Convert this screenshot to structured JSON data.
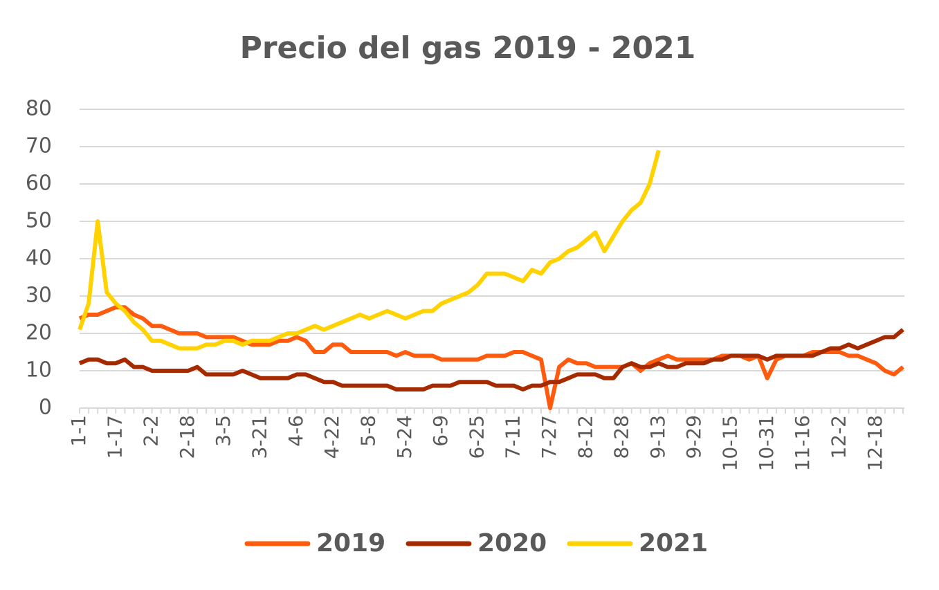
{
  "chart_data": {
    "type": "line",
    "title": "Precio del gas 2019 - 2021",
    "categories": [
      "1-1",
      null,
      null,
      null,
      "1-17",
      null,
      null,
      null,
      "2-2",
      null,
      null,
      null,
      "2-18",
      null,
      null,
      null,
      "3-5",
      null,
      null,
      null,
      "3-21",
      null,
      null,
      null,
      "4-6",
      null,
      null,
      null,
      "4-22",
      null,
      null,
      null,
      "5-8",
      null,
      null,
      null,
      "5-24",
      null,
      null,
      null,
      "6-9",
      null,
      null,
      null,
      "6-25",
      null,
      null,
      null,
      "7-11",
      null,
      null,
      null,
      "7-27",
      null,
      null,
      null,
      "8-12",
      null,
      null,
      null,
      "8-28",
      null,
      null,
      null,
      "9-13",
      null,
      null,
      null,
      "9-29",
      null,
      null,
      null,
      "10-15",
      null,
      null,
      null,
      "10-31",
      null,
      null,
      null,
      "11-16",
      null,
      null,
      null,
      "12-2",
      null,
      null,
      null,
      "12-18",
      null,
      null,
      null
    ],
    "series": [
      {
        "name": "2019",
        "color": "#ff5b0f",
        "values": [
          24,
          25,
          25,
          26,
          27,
          27,
          25,
          24,
          22,
          22,
          21,
          20,
          20,
          20,
          19,
          19,
          19,
          19,
          18,
          17,
          17,
          17,
          18,
          18,
          19,
          18,
          15,
          15,
          17,
          17,
          15,
          15,
          15,
          15,
          15,
          14,
          15,
          14,
          14,
          14,
          13,
          13,
          13,
          13,
          13,
          14,
          14,
          14,
          15,
          15,
          14,
          13,
          0,
          11,
          13,
          12,
          12,
          11,
          11,
          11,
          11,
          12,
          10,
          12,
          13,
          14,
          13,
          13,
          13,
          13,
          13,
          14,
          14,
          14,
          13,
          14,
          8,
          13,
          14,
          14,
          14,
          15,
          15,
          15,
          15,
          14,
          14,
          13,
          12,
          10,
          9,
          11
        ]
      },
      {
        "name": "2020",
        "color": "#a52a00",
        "values": [
          12,
          13,
          13,
          12,
          12,
          13,
          11,
          11,
          10,
          10,
          10,
          10,
          10,
          11,
          9,
          9,
          9,
          9,
          10,
          9,
          8,
          8,
          8,
          8,
          9,
          9,
          8,
          7,
          7,
          6,
          6,
          6,
          6,
          6,
          6,
          5,
          5,
          5,
          5,
          6,
          6,
          6,
          7,
          7,
          7,
          7,
          6,
          6,
          6,
          5,
          6,
          6,
          7,
          7,
          8,
          9,
          9,
          9,
          8,
          8,
          11,
          12,
          11,
          11,
          12,
          11,
          11,
          12,
          12,
          12,
          13,
          13,
          14,
          14,
          14,
          14,
          13,
          14,
          14,
          14,
          14,
          14,
          15,
          16,
          16,
          17,
          16,
          17,
          18,
          19,
          19,
          21
        ]
      },
      {
        "name": "2021",
        "color": "#ffd200",
        "values": [
          21,
          28,
          50,
          31,
          28,
          26,
          23,
          21,
          18,
          18,
          17,
          16,
          16,
          16,
          17,
          17,
          18,
          18,
          17,
          18,
          18,
          18,
          19,
          20,
          20,
          21,
          22,
          21,
          22,
          23,
          24,
          25,
          24,
          25,
          26,
          25,
          24,
          25,
          26,
          26,
          28,
          29,
          30,
          31,
          33,
          36,
          36,
          36,
          35,
          34,
          37,
          36,
          39,
          40,
          42,
          43,
          45,
          47,
          42,
          46,
          50,
          53,
          55,
          60,
          69,
          null,
          null,
          null,
          null,
          null,
          null,
          null,
          null,
          null,
          null,
          null,
          null,
          null,
          null,
          null,
          null,
          null,
          null,
          null,
          null,
          null,
          null,
          null,
          null,
          null,
          null,
          null
        ]
      }
    ],
    "ylim": [
      0,
      80
    ],
    "yticks": [
      0,
      10,
      20,
      30,
      40,
      50,
      60,
      70,
      80
    ],
    "grid": true,
    "legend": "bottom"
  }
}
